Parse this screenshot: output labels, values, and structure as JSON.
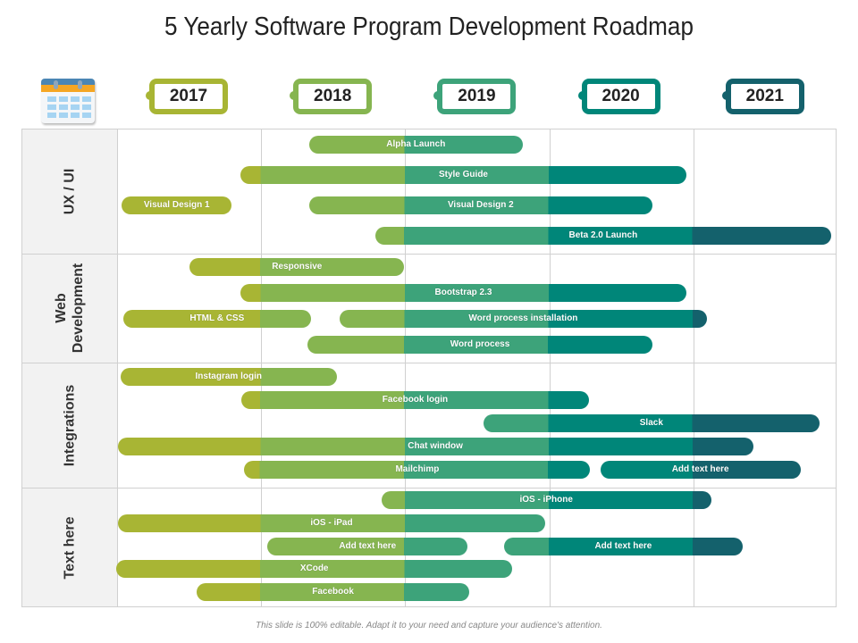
{
  "title": "5 Yearly Software Program Development Roadmap",
  "footer": "This slide is 100% editable. Adapt it to your need and capture your audience's attention.",
  "header_icon": "calendar-icon",
  "years": [
    {
      "label": "2017",
      "color": "#a8b534"
    },
    {
      "label": "2018",
      "color": "#86b550"
    },
    {
      "label": "2019",
      "color": "#3da37a"
    },
    {
      "label": "2020",
      "color": "#008679"
    },
    {
      "label": "2021",
      "color": "#14616c"
    }
  ],
  "groups": [
    {
      "label": "UX / UI",
      "bars": [
        {
          "label": "Alpha Launch",
          "start": 2018.34,
          "end": 2019.82,
          "lane": 0
        },
        {
          "label": "Style Guide",
          "start": 2017.86,
          "end": 2020.96,
          "lane": 1
        },
        {
          "label": "Visual Design 1",
          "start": 2017.04,
          "end": 2017.8,
          "lane": 2
        },
        {
          "label": "Visual Design 2",
          "start": 2018.34,
          "end": 2020.72,
          "lane": 2
        },
        {
          "label": "Beta 2.0 Launch",
          "start": 2018.8,
          "end": 2021.96,
          "lane": 3
        }
      ]
    },
    {
      "label": "Web Development",
      "bars": [
        {
          "label": "Responsive",
          "start": 2017.51,
          "end": 2019.0,
          "lane": 0
        },
        {
          "label": "Bootstrap 2.3",
          "start": 2017.86,
          "end": 2020.96,
          "lane": 1
        },
        {
          "label": "HTML & CSS",
          "start": 2017.05,
          "end": 2018.35,
          "lane": 2
        },
        {
          "label": "Word process installation",
          "start": 2018.55,
          "end": 2021.1,
          "lane": 2
        },
        {
          "label": "Word process",
          "start": 2018.33,
          "end": 2020.72,
          "lane": 3
        }
      ]
    },
    {
      "label": "Integrations",
      "bars": [
        {
          "label": "Instagram login",
          "start": 2017.03,
          "end": 2018.53,
          "lane": 0
        },
        {
          "label": "Facebook login",
          "start": 2017.87,
          "end": 2020.28,
          "lane": 1
        },
        {
          "label": "Slack",
          "start": 2019.55,
          "end": 2021.88,
          "lane": 2
        },
        {
          "label": "Chat window",
          "start": 2017.01,
          "end": 2021.42,
          "lane": 3
        },
        {
          "label": "Mailchimp",
          "start": 2017.89,
          "end": 2020.29,
          "lane": 4
        },
        {
          "label": "Add text here",
          "start": 2020.36,
          "end": 2021.75,
          "lane": 4
        }
      ]
    },
    {
      "label": "Text here",
      "bars": [
        {
          "label": "iOS - iPhone",
          "start": 2018.84,
          "end": 2021.13,
          "lane": 0
        },
        {
          "label": "iOS - iPad",
          "start": 2017.01,
          "end": 2019.98,
          "lane": 1
        },
        {
          "label": "Add text here",
          "start": 2018.05,
          "end": 2019.44,
          "lane": 2
        },
        {
          "label": "Add text here",
          "start": 2019.69,
          "end": 2021.35,
          "lane": 2
        },
        {
          "label": "XCode",
          "start": 2017.0,
          "end": 2019.75,
          "lane": 3
        },
        {
          "label": "Facebook",
          "start": 2017.56,
          "end": 2019.45,
          "lane": 4
        }
      ]
    }
  ]
}
